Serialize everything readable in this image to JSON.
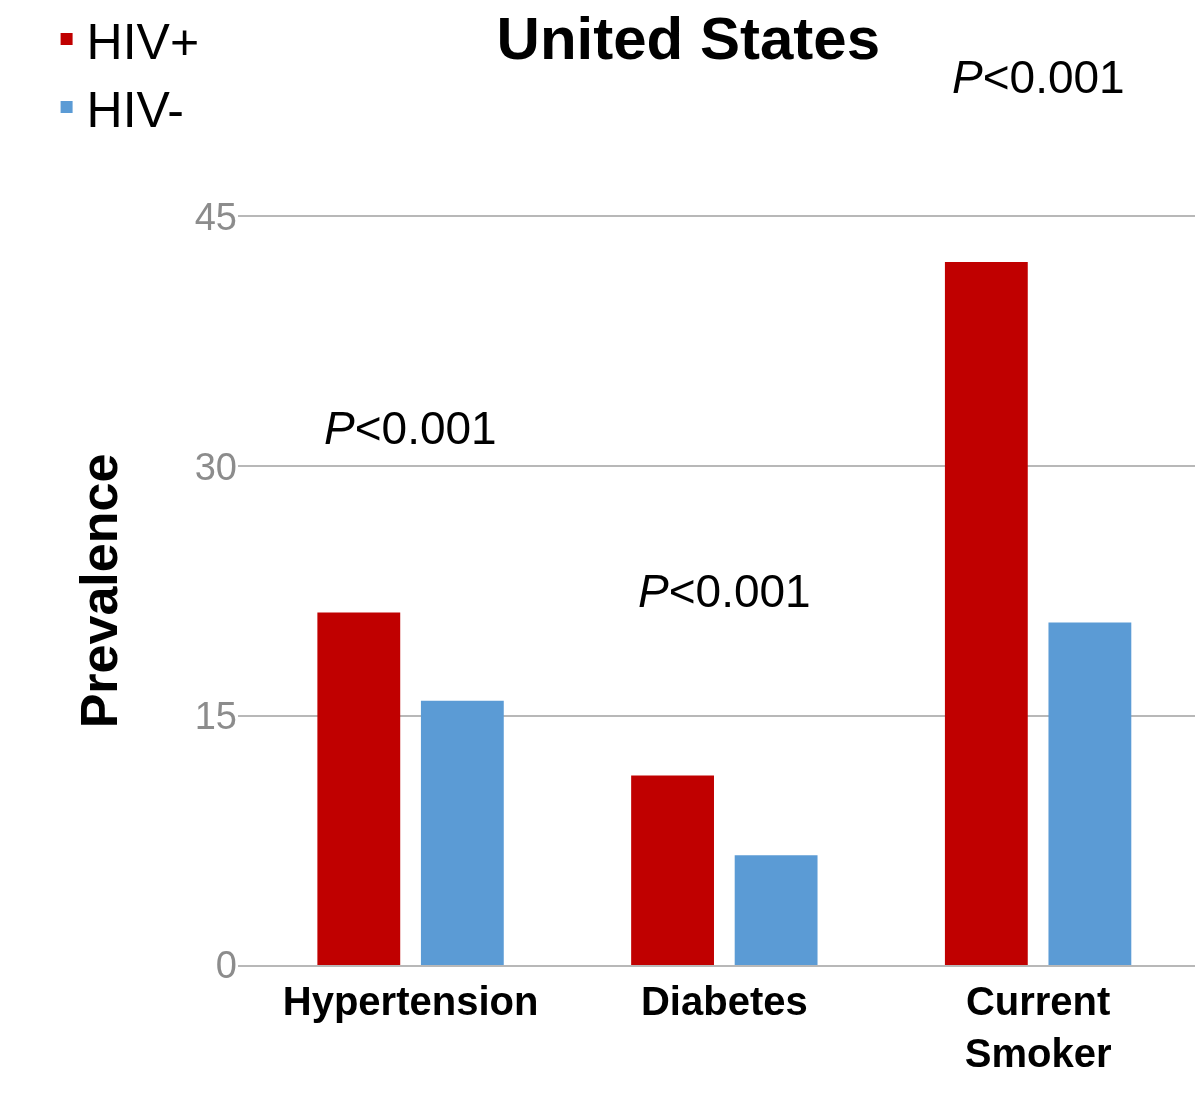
{
  "chart_data": {
    "type": "bar",
    "title": "United States",
    "ylabel": "Prevalence",
    "categories": [
      "Hypertension",
      "Diabetes",
      "Current Smoker"
    ],
    "series": [
      {
        "name": "HIV+",
        "color": "#c00000",
        "values": [
          21.2,
          11.4,
          42.3
        ]
      },
      {
        "name": "HIV-",
        "color": "#5b9bd5",
        "values": [
          15.9,
          6.6,
          20.6
        ]
      }
    ],
    "ylim": [
      0,
      45
    ],
    "yticks": [
      0,
      15,
      30,
      45
    ],
    "grid": "y",
    "legend": "top left",
    "annotations": [
      "P<0.001",
      "P<0.001",
      "P<0.001"
    ]
  }
}
